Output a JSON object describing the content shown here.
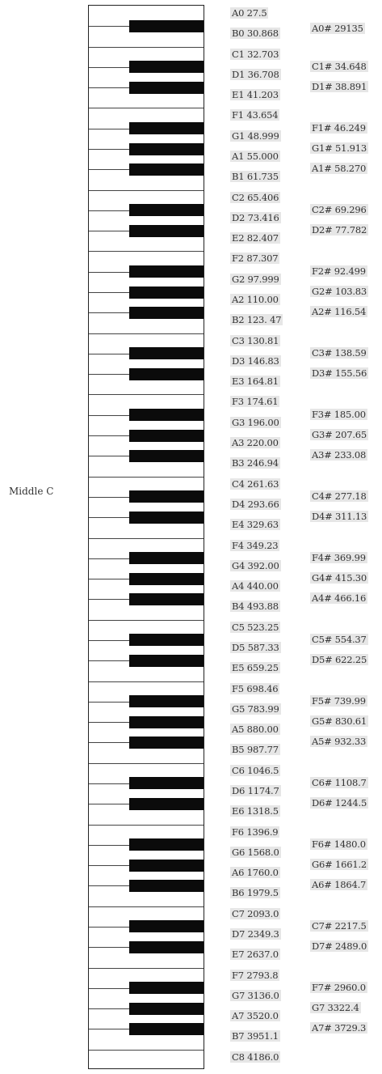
{
  "middle_c_label": "Middle C",
  "natural_labels": [
    "A0 27.5",
    "B0 30.868",
    "C1 32.703",
    "D1 36.708",
    "E1 41.203",
    "F1 43.654",
    "G1 48.999",
    "A1 55.000",
    "B1 61.735",
    "C2 65.406",
    "D2 73.416",
    "E2 82.407",
    "F2 87.307",
    "G2 97.999",
    "A2 110.00",
    "B2 123. 47",
    "C3 130.81",
    "D3 146.83",
    "E3 164.81",
    "F3 174.61",
    "G3 196.00",
    "A3 220.00",
    "B3 246.94",
    "C4 261.63",
    "D4 293.66",
    "E4 329.63",
    "F4 349.23",
    "G4 392.00",
    "A4 440.00",
    "B4 493.88",
    "C5 523.25",
    "D5 587.33",
    "E5 659.25",
    "F5 698.46",
    "G5 783.99",
    "A5 880.00",
    "B5 987.77",
    "C6 1046.5",
    "D6 1174.7",
    "E6 1318.5",
    "F6 1396.9",
    "G6 1568.0",
    "A6 1760.0",
    "B6 1979.5",
    "C7 2093.0",
    "D7 2349.3",
    "E7 2637.0",
    "F7 2793.8",
    "G7 3136.0",
    "A7 3520.0",
    "B7 3951.1",
    "C8 4186.0"
  ],
  "sharp_labels": [
    "A0# 29135",
    "C1# 34.648",
    "D1# 38.891",
    "F1# 46.249",
    "G1# 51.913",
    "A1# 58.270",
    "C2# 69.296",
    "D2# 77.782",
    "F2# 92.499",
    "G2# 103.83",
    "A2# 116.54",
    "C3# 138.59",
    "D3# 155.56",
    "F3# 185.00",
    "G3# 207.65",
    "A3# 233.08",
    "C4# 277.18",
    "D4# 311.13",
    "F4# 369.99",
    "G4# 415.30",
    "A4# 466.16",
    "C5# 554.37",
    "D5# 622.25",
    "F5# 739.99",
    "G5# 830.61",
    "A5# 932.33",
    "C6# 1108.7",
    "D6# 1244.5",
    "F6# 1480.0",
    "G6# 1661.2",
    "A6# 1864.7",
    "C7# 2217.5",
    "D7# 2489.0",
    "F7# 2960.0",
    "G7 3322.4",
    "A7# 3729.3"
  ]
}
